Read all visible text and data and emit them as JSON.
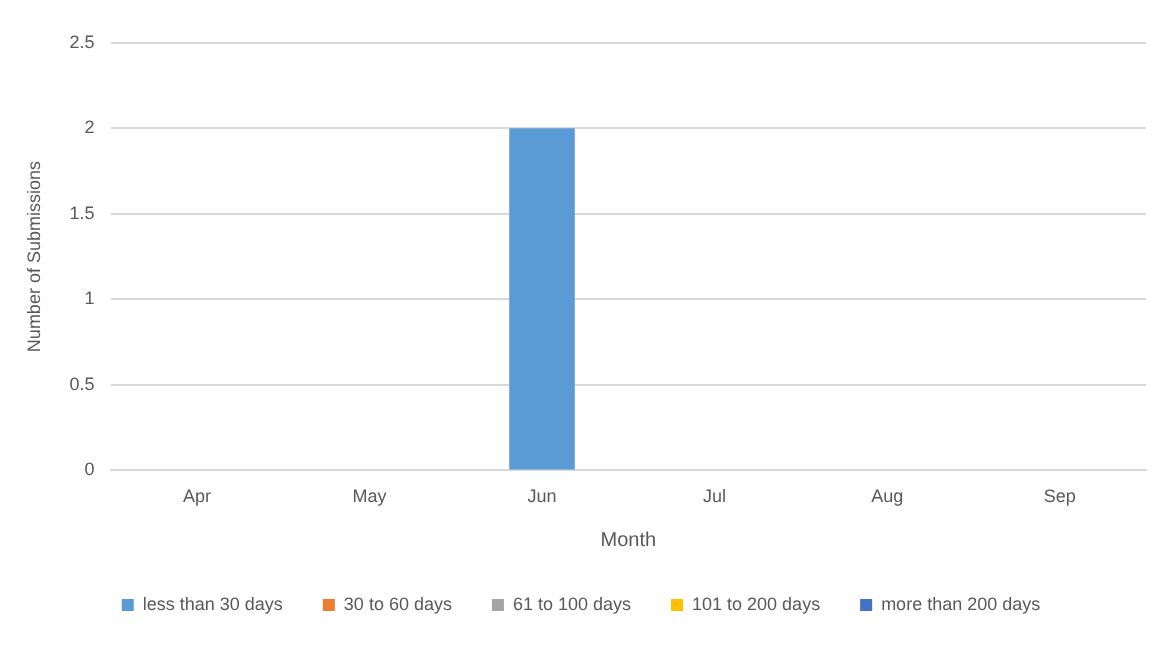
{
  "chart_data": {
    "type": "bar",
    "xlabel": "Month",
    "ylabel": "Number of Submissions",
    "categories": [
      "Apr",
      "May",
      "Jun",
      "Jul",
      "Aug",
      "Sep"
    ],
    "series": [
      {
        "name": "less than 30 days",
        "color": "#5b9bd5",
        "values": [
          0,
          0,
          2,
          0,
          0,
          0
        ]
      },
      {
        "name": "30 to 60 days",
        "color": "#ed7d31",
        "values": [
          0,
          0,
          0,
          0,
          0,
          0
        ]
      },
      {
        "name": "61 to 100 days",
        "color": "#a5a5a5",
        "values": [
          0,
          0,
          0,
          0,
          0,
          0
        ]
      },
      {
        "name": "101 to 200 days",
        "color": "#ffc000",
        "values": [
          0,
          0,
          0,
          0,
          0,
          0
        ]
      },
      {
        "name": "more than 200 days",
        "color": "#4472c4",
        "values": [
          0,
          0,
          0,
          0,
          0,
          0
        ]
      }
    ],
    "stacked": true,
    "ylim": [
      0,
      2.5
    ],
    "yticks": [
      0,
      0.5,
      1,
      1.5,
      2,
      2.5
    ],
    "grid": "y",
    "legend": "bottom"
  }
}
